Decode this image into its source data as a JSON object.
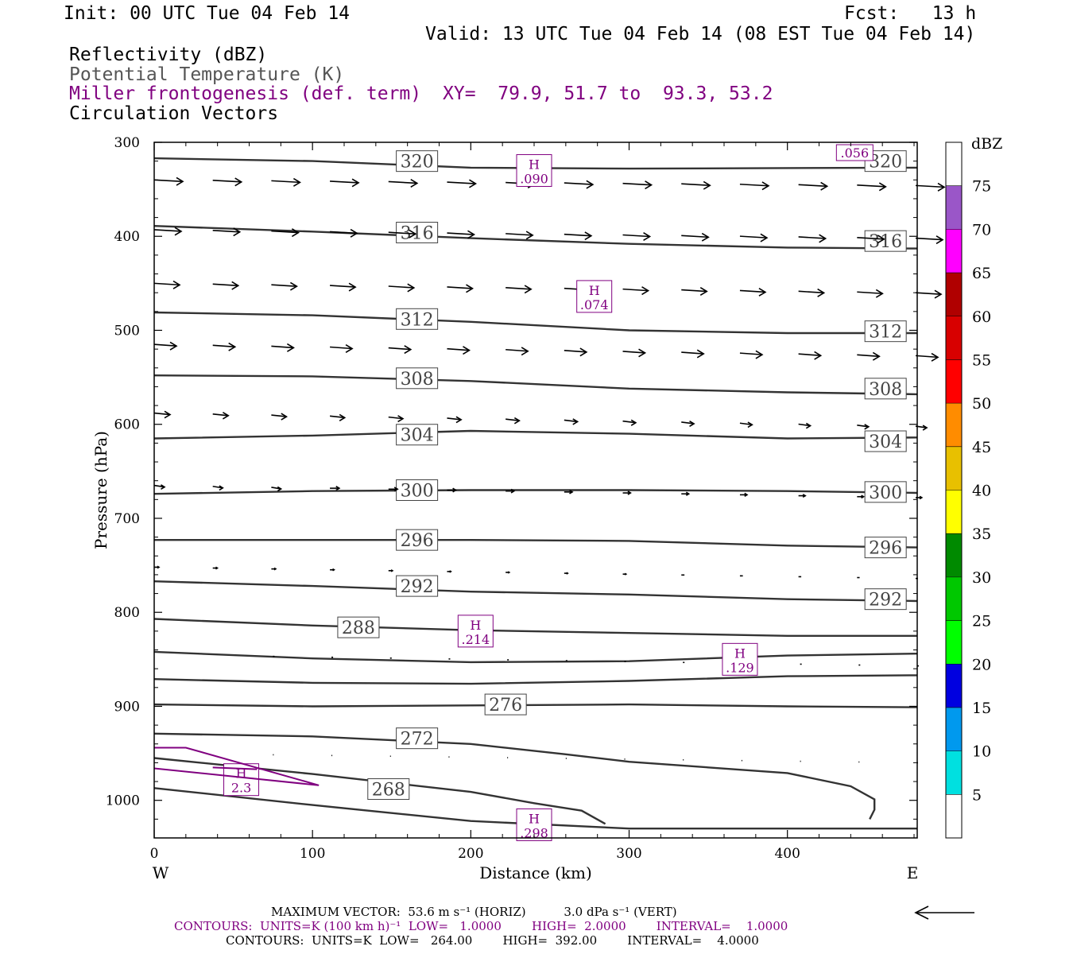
{
  "header": {
    "init": "Init: 00 UTC Tue 04 Feb 14",
    "fcst": "Fcst:   13 h",
    "valid": "Valid: 13 UTC Tue 04 Feb 14 (08 EST Tue 04 Feb 14)",
    "fields": [
      "Reflectivity (dBZ)",
      "Potential Temperature (K)",
      "Miller frontogenesis (def. term)",
      "Circulation Vectors"
    ],
    "xy": "XY=  79.9, 51.7 to  93.3, 53.2",
    "colors": {
      "black": "#000000",
      "gray": "#555555",
      "purple": "#800080"
    }
  },
  "chart_data": {
    "type": "contour-cross-section",
    "xlabel": "Distance (km)",
    "ylabel": "Pressure (hPa)",
    "xlim": [
      0,
      482
    ],
    "ylim": [
      300,
      1040
    ],
    "x_ticks": [
      0,
      100,
      200,
      300,
      400
    ],
    "y_ticks": [
      300,
      400,
      500,
      600,
      700,
      800,
      900,
      1000
    ],
    "left_end_label": "W",
    "right_end_label": "E",
    "isentropes": [
      {
        "theta": 320,
        "points": [
          [
            0,
            317
          ],
          [
            100,
            320
          ],
          [
            200,
            327
          ],
          [
            300,
            328
          ],
          [
            482,
            327
          ]
        ],
        "labels": [
          [
            166,
            320
          ],
          [
            462,
            320
          ]
        ]
      },
      {
        "theta": 316,
        "points": [
          [
            0,
            389
          ],
          [
            100,
            395
          ],
          [
            200,
            402
          ],
          [
            300,
            408
          ],
          [
            400,
            412
          ],
          [
            482,
            413
          ]
        ],
        "labels": [
          [
            166,
            396
          ],
          [
            462,
            405
          ]
        ]
      },
      {
        "theta": 312,
        "points": [
          [
            0,
            481
          ],
          [
            100,
            484
          ],
          [
            200,
            491
          ],
          [
            300,
            500
          ],
          [
            400,
            503
          ],
          [
            482,
            503
          ]
        ],
        "labels": [
          [
            166,
            488
          ],
          [
            462,
            501
          ]
        ]
      },
      {
        "theta": 308,
        "points": [
          [
            0,
            548
          ],
          [
            100,
            549
          ],
          [
            200,
            554
          ],
          [
            300,
            562
          ],
          [
            400,
            566
          ],
          [
            482,
            568
          ]
        ],
        "labels": [
          [
            166,
            551
          ],
          [
            462,
            562
          ]
        ]
      },
      {
        "theta": 304,
        "points": [
          [
            0,
            615
          ],
          [
            100,
            612
          ],
          [
            200,
            607
          ],
          [
            300,
            610
          ],
          [
            400,
            615
          ],
          [
            482,
            614
          ]
        ],
        "labels": [
          [
            166,
            611
          ],
          [
            462,
            618
          ]
        ]
      },
      {
        "theta": 300,
        "points": [
          [
            0,
            674
          ],
          [
            100,
            671
          ],
          [
            200,
            670
          ],
          [
            300,
            670
          ],
          [
            400,
            671
          ],
          [
            482,
            673
          ]
        ],
        "labels": [
          [
            166,
            670
          ],
          [
            462,
            672
          ]
        ]
      },
      {
        "theta": 296,
        "points": [
          [
            0,
            723
          ],
          [
            100,
            723
          ],
          [
            200,
            723
          ],
          [
            300,
            724
          ],
          [
            400,
            729
          ],
          [
            482,
            731
          ]
        ],
        "labels": [
          [
            166,
            723
          ],
          [
            462,
            731
          ]
        ]
      },
      {
        "theta": 292,
        "points": [
          [
            0,
            767
          ],
          [
            100,
            772
          ],
          [
            200,
            778
          ],
          [
            300,
            781
          ],
          [
            400,
            786
          ],
          [
            482,
            788
          ]
        ],
        "labels": [
          [
            166,
            772
          ],
          [
            462,
            786
          ]
        ]
      },
      {
        "theta": 288,
        "points": [
          [
            0,
            807
          ],
          [
            100,
            814
          ],
          [
            200,
            819
          ],
          [
            300,
            822
          ],
          [
            400,
            825
          ],
          [
            482,
            825
          ]
        ],
        "labels": [
          [
            129,
            816
          ]
        ]
      },
      {
        "theta": 284,
        "points": [
          [
            0,
            842
          ],
          [
            100,
            849
          ],
          [
            200,
            853
          ],
          [
            300,
            852
          ],
          [
            400,
            846
          ],
          [
            482,
            844
          ]
        ],
        "labels": []
      },
      {
        "theta": 280,
        "points": [
          [
            0,
            871
          ],
          [
            100,
            875
          ],
          [
            200,
            876
          ],
          [
            300,
            873
          ],
          [
            400,
            868
          ],
          [
            482,
            867
          ]
        ],
        "labels": []
      },
      {
        "theta": 276,
        "points": [
          [
            0,
            898
          ],
          [
            100,
            900
          ],
          [
            200,
            899
          ],
          [
            300,
            898
          ],
          [
            400,
            900
          ],
          [
            482,
            901
          ]
        ],
        "labels": [
          [
            222,
            898
          ]
        ]
      },
      {
        "theta": 272,
        "points": [
          [
            0,
            929
          ],
          [
            100,
            932
          ],
          [
            200,
            940
          ],
          [
            260,
            951
          ],
          [
            300,
            959
          ],
          [
            400,
            971
          ],
          [
            440,
            985
          ],
          [
            455,
            999
          ],
          [
            455,
            1010
          ],
          [
            452,
            1020
          ]
        ],
        "labels": [
          [
            166,
            934
          ]
        ]
      },
      {
        "theta": 268,
        "points": [
          [
            0,
            955
          ],
          [
            100,
            972
          ],
          [
            200,
            991
          ],
          [
            240,
            1003
          ],
          [
            270,
            1011
          ],
          [
            285,
            1025
          ]
        ],
        "labels": [
          [
            148,
            988
          ]
        ]
      },
      {
        "theta": 264,
        "points": [
          [
            0,
            987
          ],
          [
            100,
            1005
          ],
          [
            200,
            1022
          ],
          [
            300,
            1030
          ],
          [
            482,
            1030
          ]
        ],
        "labels": []
      }
    ],
    "frontogenesis_highs": [
      {
        "x": 240,
        "p": 330,
        "value": ".090"
      },
      {
        "x": 278,
        "p": 464,
        "value": ".074"
      },
      {
        "x": 203,
        "p": 820,
        "value": ".214"
      },
      {
        "x": 370,
        "p": 850,
        "value": ".129"
      },
      {
        "x": 55,
        "p": 978,
        "value": "2.3"
      },
      {
        "x": 240,
        "p": 1026,
        "value": ".298"
      }
    ],
    "frontogenesis_label_topright": ".056",
    "colorbar": {
      "title": "dBZ",
      "labels": [
        "5",
        "10",
        "15",
        "20",
        "25",
        "30",
        "35",
        "40",
        "45",
        "50",
        "55",
        "60",
        "65",
        "70",
        "75"
      ],
      "colors": [
        "#ffffff",
        "#00e0e0",
        "#0099ee",
        "#0000e0",
        "#00ff00",
        "#00c800",
        "#008a00",
        "#ffff00",
        "#e8c000",
        "#ff8c00",
        "#ff0000",
        "#d80000",
        "#b00000",
        "#ff00ff",
        "#9a56c8",
        "#ffffff"
      ]
    },
    "vector_rows": [
      {
        "p": 340,
        "x_start": 0,
        "spacing": 37,
        "len": 36,
        "dp": 6,
        "fade": 0
      },
      {
        "p": 393,
        "x_start": 0,
        "spacing": 37,
        "len": 34,
        "dp": 9,
        "fade": 0
      },
      {
        "p": 450,
        "x_start": 0,
        "spacing": 37,
        "len": 32,
        "dp": 10,
        "fade": 0
      },
      {
        "p": 515,
        "x_start": 0,
        "spacing": 37,
        "len": 28,
        "dp": 12,
        "fade": 0
      },
      {
        "p": 588,
        "x_start": 0,
        "spacing": 37,
        "len": 20,
        "dp": 14,
        "fade": 0.3
      },
      {
        "p": 665,
        "x_start": 0,
        "spacing": 37,
        "len": 13,
        "dp": 13,
        "fade": 0.4
      },
      {
        "p": 752,
        "x_start": 0,
        "spacing": 37,
        "len": 6,
        "dp": 12,
        "fade": 0.5
      },
      {
        "p": 845,
        "x_start": 75,
        "spacing": 37,
        "len": 2,
        "dp": 12,
        "fade": 0
      },
      {
        "p": 950,
        "x_start": 75,
        "spacing": 37,
        "len": 1,
        "dp": 10,
        "fade": 0
      }
    ],
    "reference_vector_label": "MAXIMUM VECTOR:  53.6 m s⁻¹ (HORIZ)          3.0 dPa s⁻¹ (VERT)"
  },
  "footer": {
    "line1": "MAXIMUM VECTOR:  53.6 m s⁻¹ (HORIZ)          3.0 dPa s⁻¹ (VERT)",
    "line2": "CONTOURS:  UNITS=K (100 km h)⁻¹  LOW=   1.0000        HIGH=  2.0000        INTERVAL=    1.0000",
    "line3": "CONTOURS:  UNITS=K  LOW=   264.00        HIGH=  392.00        INTERVAL=    4.0000"
  }
}
